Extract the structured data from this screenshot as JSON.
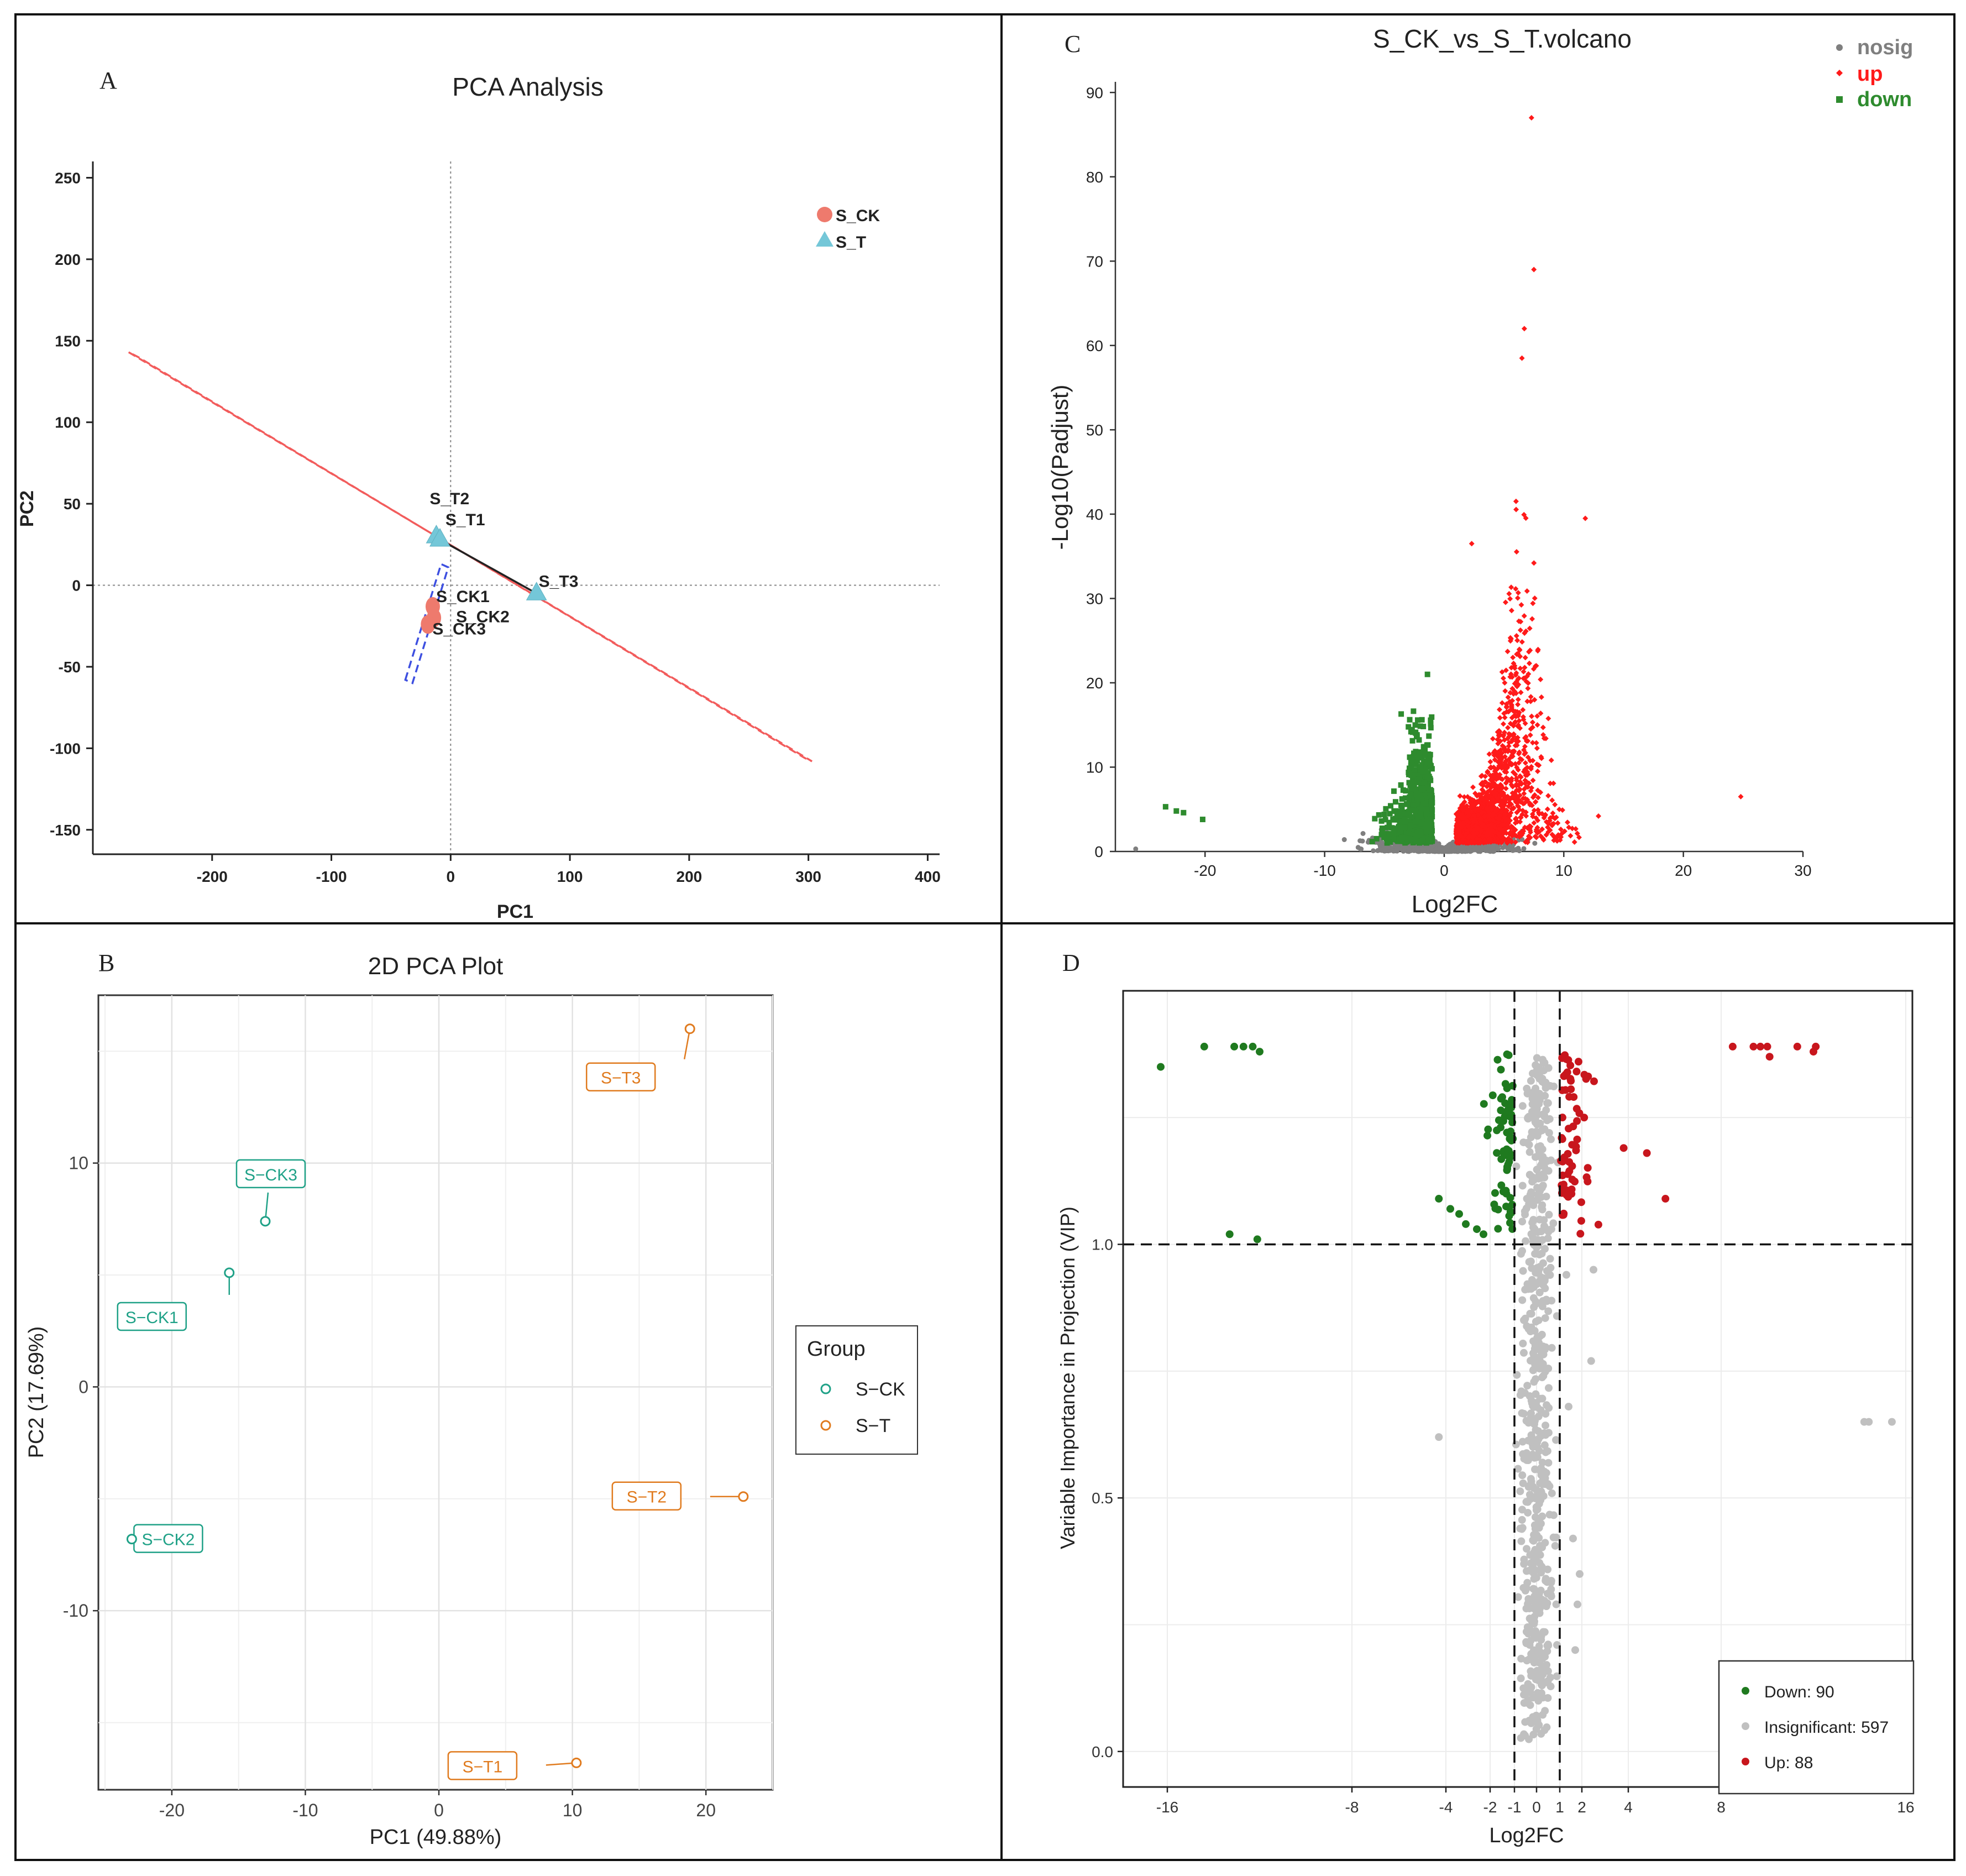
{
  "panels": {
    "A": {
      "letter": "A"
    },
    "B": {
      "letter": "B"
    },
    "C": {
      "letter": "C"
    },
    "D": {
      "letter": "D"
    }
  },
  "chart_data": [
    {
      "id": "A",
      "type": "scatter",
      "title": "PCA Analysis",
      "xlabel": "PC1",
      "ylabel": "PC2",
      "xlim": [
        -300,
        410
      ],
      "ylim": [
        -165,
        260
      ],
      "xticks": [
        -200,
        -100,
        0,
        100,
        200,
        300,
        400
      ],
      "yticks": [
        -150,
        -100,
        -50,
        0,
        50,
        100,
        150,
        200,
        250
      ],
      "legend": [
        {
          "name": "S_CK",
          "color": "#ee7a6d",
          "shape": "circle"
        },
        {
          "name": "S_T",
          "color": "#74c7d8",
          "shape": "triangle"
        }
      ],
      "points": [
        {
          "label": "S_T2",
          "group": "S_T",
          "x": -12,
          "y": 30
        },
        {
          "label": "S_T1",
          "group": "S_T",
          "x": -9,
          "y": 28
        },
        {
          "label": "S_T3",
          "group": "S_T",
          "x": 72,
          "y": -5
        },
        {
          "label": "S_CK1",
          "group": "S_CK",
          "x": -15,
          "y": -13
        },
        {
          "label": "S_CK2",
          "group": "S_CK",
          "x": -14,
          "y": -20
        },
        {
          "label": "S_CK3",
          "group": "S_CK",
          "x": -19,
          "y": -24
        }
      ],
      "ellipses": [
        {
          "group": "S_T",
          "color": "#f25c5c",
          "polyline_a": [
            [
              -270,
              143
            ],
            [
              303,
              -108
            ]
          ],
          "polyline_b": [
            [
              -262,
              140
            ],
            [
              297,
              -106
            ]
          ]
        },
        {
          "group": "S_CK",
          "color": "#3d4fe0",
          "polyline_a": [
            [
              -38,
              -58
            ],
            [
              -8,
              13
            ]
          ],
          "polyline_b": [
            [
              -32,
              -60
            ],
            [
              -2,
              11
            ]
          ]
        }
      ]
    },
    {
      "id": "B",
      "type": "scatter",
      "title": "2D PCA Plot",
      "xlabel": "PC1 (49.88%)",
      "ylabel": "PC2 (17.69%)",
      "xlim": [
        -25.5,
        25
      ],
      "ylim": [
        -18,
        17.5
      ],
      "xticks": [
        -20,
        -10,
        0,
        10,
        20
      ],
      "yticks": [
        -10,
        0,
        10
      ],
      "legend_title": "Group",
      "legend": [
        {
          "name": "S−CK",
          "color": "#1fa187"
        },
        {
          "name": "S−T",
          "color": "#e07b1f"
        }
      ],
      "points": [
        {
          "label": "S−CK3",
          "group": "S−CK",
          "x": -13,
          "y": 7.4
        },
        {
          "label": "S−CK1",
          "group": "S−CK",
          "x": -15.7,
          "y": 5.1
        },
        {
          "label": "S−CK2",
          "group": "S−CK",
          "x": -23,
          "y": -6.8
        },
        {
          "label": "S−T3",
          "group": "S−T",
          "x": 18.8,
          "y": 16
        },
        {
          "label": "S−T2",
          "group": "S−T",
          "x": 22.8,
          "y": -4.9
        },
        {
          "label": "S−T1",
          "group": "S−T",
          "x": 10.3,
          "y": -16.8
        }
      ]
    },
    {
      "id": "C",
      "type": "scatter",
      "title": "S_CK_vs_S_T.volcano",
      "xlabel": "Log2FC",
      "ylabel": "-Log10(Padjust)",
      "xlim": [
        -27.5,
        30
      ],
      "ylim": [
        0,
        91
      ],
      "xticks": [
        -20,
        -10,
        0,
        10,
        20,
        30
      ],
      "yticks": [
        0,
        10,
        20,
        30,
        40,
        50,
        60,
        70,
        80,
        90
      ],
      "legend": [
        {
          "name": "nosig",
          "color": "#7f7f7f"
        },
        {
          "name": "up",
          "color": "#ff1a1a"
        },
        {
          "name": "down",
          "color": "#2e8b2e"
        }
      ],
      "notable_points": [
        {
          "group": "up",
          "x": 7.3,
          "y": 87
        },
        {
          "group": "up",
          "x": 7.5,
          "y": 69
        },
        {
          "group": "up",
          "x": 6.7,
          "y": 62
        },
        {
          "group": "up",
          "x": 6.5,
          "y": 58.5
        },
        {
          "group": "up",
          "x": 11.8,
          "y": 39.5
        },
        {
          "group": "up",
          "x": 2.3,
          "y": 36.5
        },
        {
          "group": "up",
          "x": 24.8,
          "y": 6.5
        },
        {
          "group": "up",
          "x": 12.9,
          "y": 4.2
        },
        {
          "group": "down",
          "x": -23.3,
          "y": 5.3
        },
        {
          "group": "down",
          "x": -22.4,
          "y": 4.8
        },
        {
          "group": "down",
          "x": -21.8,
          "y": 4.6
        },
        {
          "group": "down",
          "x": -20.2,
          "y": 3.8
        },
        {
          "group": "down",
          "x": -1.4,
          "y": 21
        },
        {
          "group": "down",
          "x": -3.6,
          "y": 16.3
        },
        {
          "group": "nosig",
          "x": -25.8,
          "y": 0.3
        }
      ]
    },
    {
      "id": "D",
      "type": "scatter",
      "title": "",
      "xlabel": "Log2FC",
      "ylabel": "Variable Importance in Projection (VIP)",
      "xlim": [
        -17.5,
        16.5
      ],
      "ylim": [
        -0.07,
        1.5
      ],
      "xticks": [
        "-16",
        "-8",
        "-4",
        "-2",
        "-1",
        "0",
        "1",
        "2",
        "4",
        "8",
        "16"
      ],
      "yticks": [
        "0.0",
        "0.5",
        "1.0"
      ],
      "thresholds": {
        "vip": 1.0,
        "log2fc": [
          -1,
          1
        ]
      },
      "legend": [
        {
          "name": "Down: 90",
          "color": "#1f7a1f"
        },
        {
          "name": "Insignificant: 597",
          "color": "#c0c0c0"
        },
        {
          "name": "Up: 88",
          "color": "#c8161d"
        }
      ]
    }
  ]
}
